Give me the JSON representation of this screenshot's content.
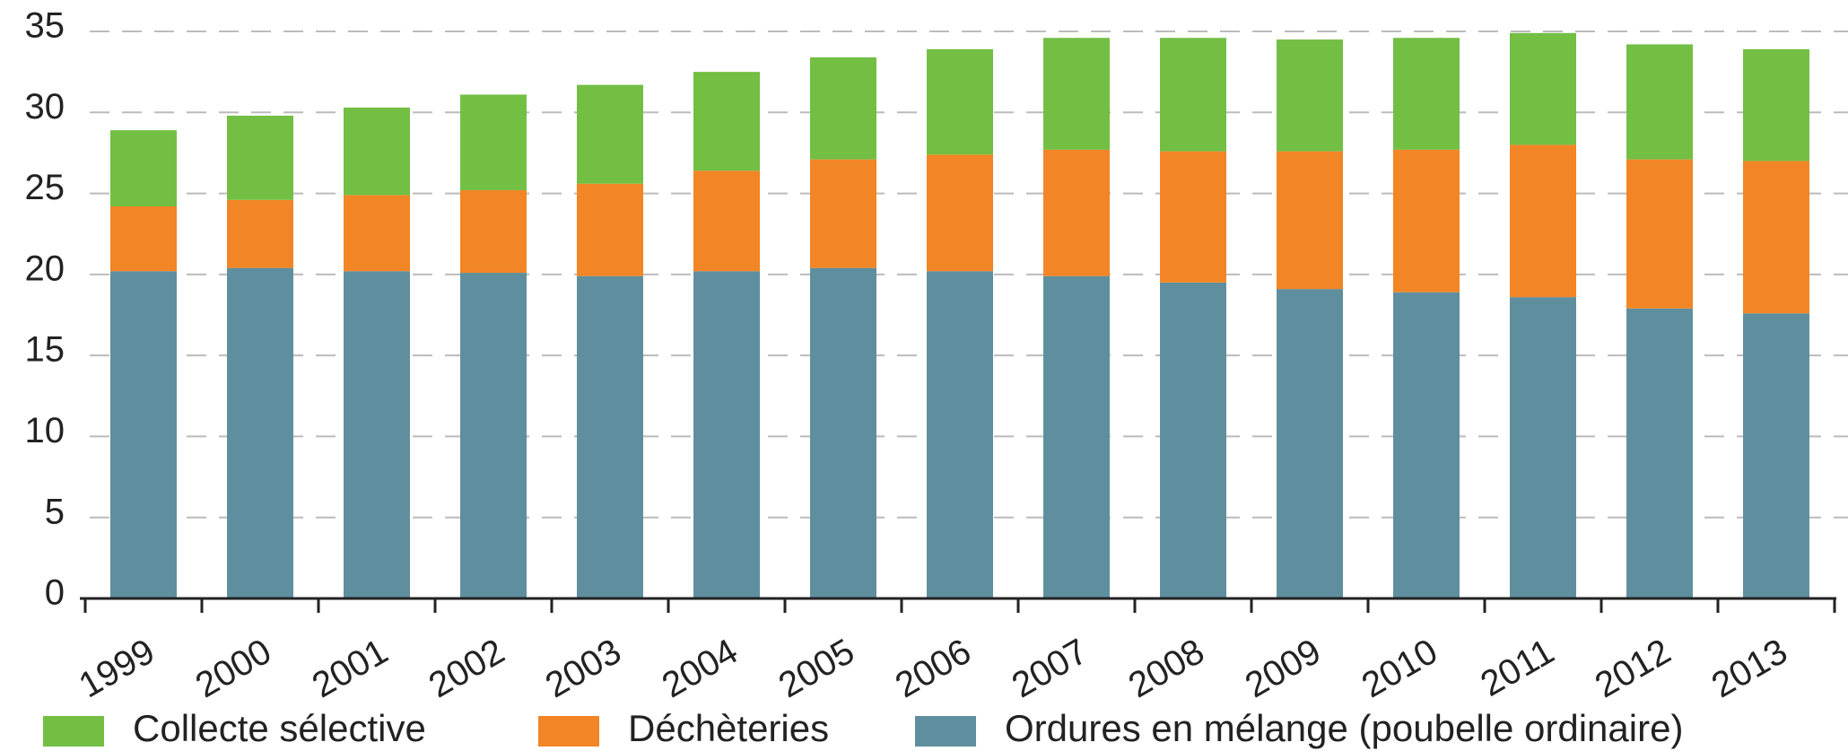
{
  "chart_data": {
    "type": "stacked_bar",
    "categories": [
      "1999",
      "2000",
      "2001",
      "2002",
      "2003",
      "2004",
      "2005",
      "2006",
      "2007",
      "2008",
      "2009",
      "2010",
      "2011",
      "2012",
      "2013"
    ],
    "series": [
      {
        "name": "Ordures en mélange (poubelle ordinaire)",
        "color": "#5f8f9e",
        "values": [
          20.2,
          20.4,
          20.2,
          20.1,
          19.9,
          20.2,
          20.4,
          20.2,
          19.9,
          19.5,
          19.1,
          18.9,
          18.6,
          17.9,
          17.6
        ]
      },
      {
        "name": "Déchèteries",
        "color": "#f28525",
        "values": [
          4.0,
          4.2,
          4.7,
          5.1,
          5.7,
          6.2,
          6.7,
          7.2,
          7.8,
          8.1,
          8.5,
          8.8,
          9.4,
          9.2,
          9.4
        ]
      },
      {
        "name": "Collecte sélective",
        "color": "#72bf44",
        "values": [
          4.7,
          5.2,
          5.4,
          5.9,
          6.1,
          6.1,
          6.3,
          6.5,
          6.9,
          7.0,
          6.9,
          6.9,
          6.9,
          7.1,
          6.9
        ]
      }
    ],
    "ylim": [
      0,
      35
    ],
    "yticks": [
      0,
      5,
      10,
      15,
      20,
      25,
      30,
      35
    ],
    "grid": true,
    "legend": "bottom"
  }
}
